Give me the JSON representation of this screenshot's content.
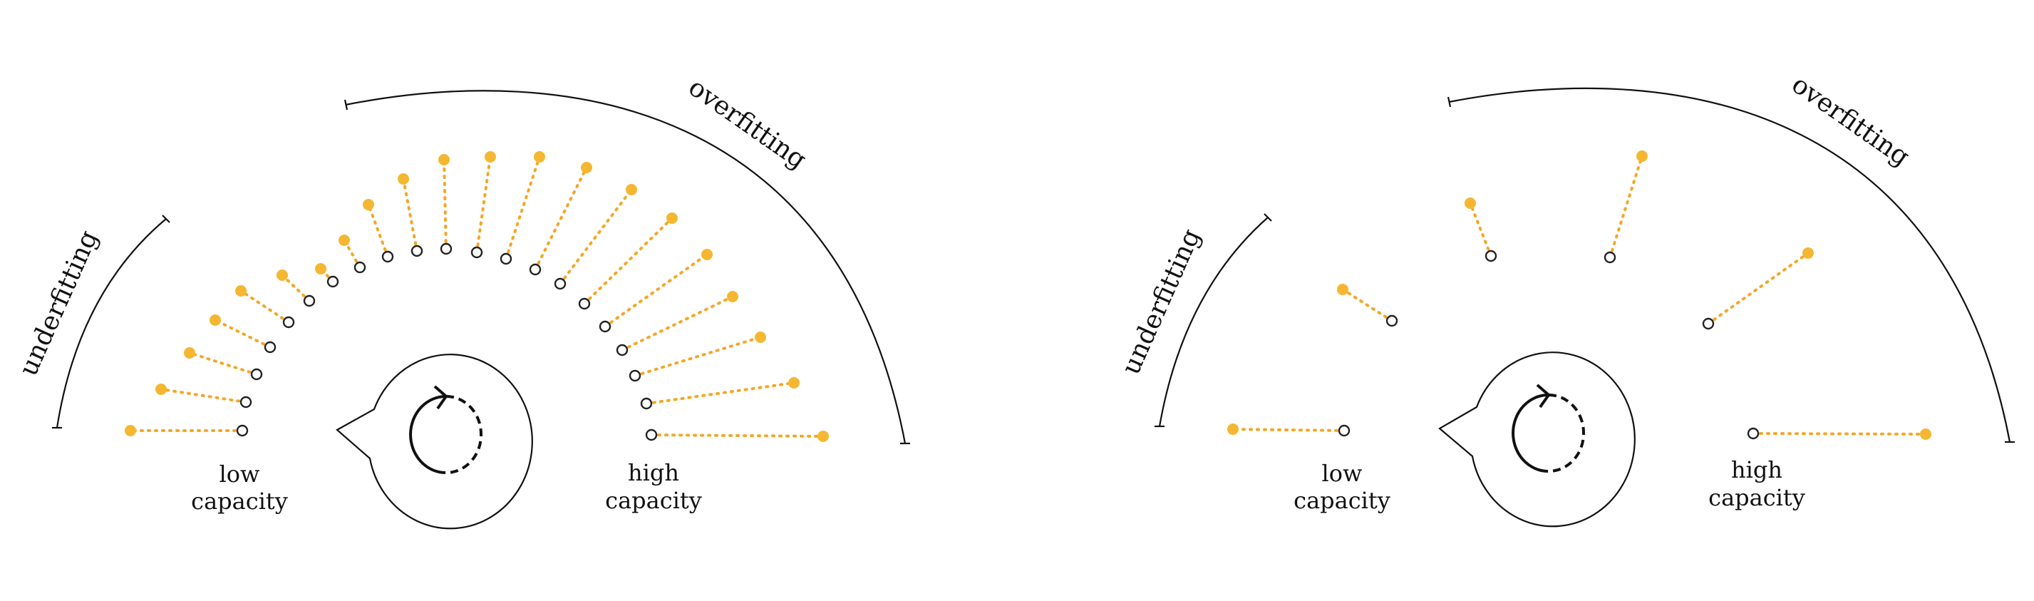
{
  "panels": [
    {
      "id": "left",
      "labels": {
        "underfitting": "underfitting",
        "overfitting": "overfitting",
        "low_capacity": [
          "low",
          "capacity"
        ],
        "high_capacity": [
          "high",
          "capacity"
        ]
      },
      "models": [
        {
          "truth": [
            340,
            604
          ],
          "pred": [
            183,
            604
          ]
        },
        {
          "truth": [
            345,
            564
          ],
          "pred": [
            226,
            546
          ]
        },
        {
          "truth": [
            360,
            525
          ],
          "pred": [
            266,
            495
          ]
        },
        {
          "truth": [
            379,
            487
          ],
          "pred": [
            302,
            449
          ]
        },
        {
          "truth": [
            405,
            452
          ],
          "pred": [
            338,
            408
          ]
        },
        {
          "truth": [
            434,
            422
          ],
          "pred": [
            396,
            386
          ]
        },
        {
          "truth": [
            467,
            395
          ],
          "pred": [
            450,
            377
          ]
        },
        {
          "truth": [
            505,
            375
          ],
          "pred": [
            483,
            337
          ]
        },
        {
          "truth": [
            544,
            360
          ],
          "pred": [
            517,
            287
          ]
        },
        {
          "truth": [
            585,
            352
          ],
          "pred": [
            566,
            251
          ]
        },
        {
          "truth": [
            626,
            349
          ],
          "pred": [
            623,
            224
          ]
        },
        {
          "truth": [
            669,
            354
          ],
          "pred": [
            688,
            220
          ]
        },
        {
          "truth": [
            710,
            363
          ],
          "pred": [
            757,
            220
          ]
        },
        {
          "truth": [
            751,
            378
          ],
          "pred": [
            823,
            235
          ]
        },
        {
          "truth": [
            786,
            398
          ],
          "pred": [
            886,
            266
          ]
        },
        {
          "truth": [
            820,
            426
          ],
          "pred": [
            943,
            306
          ]
        },
        {
          "truth": [
            849,
            458
          ],
          "pred": [
            992,
            357
          ]
        },
        {
          "truth": [
            873,
            491
          ],
          "pred": [
            1028,
            416
          ]
        },
        {
          "truth": [
            891,
            527
          ],
          "pred": [
            1067,
            473
          ]
        },
        {
          "truth": [
            907,
            566
          ],
          "pred": [
            1114,
            537
          ]
        },
        {
          "truth": [
            914,
            610
          ],
          "pred": [
            1155,
            612
          ]
        }
      ]
    },
    {
      "id": "right",
      "labels": {
        "underfitting": "underfitting",
        "overfitting": "overfitting",
        "low_capacity": [
          "low",
          "capacity"
        ],
        "high_capacity": [
          "high",
          "capacity"
        ]
      },
      "models": [
        {
          "truth": [
            1886,
            604
          ],
          "pred": [
            1730,
            602
          ]
        },
        {
          "truth": [
            1953,
            450
          ],
          "pred": [
            1884,
            406
          ]
        },
        {
          "truth": [
            2092,
            359
          ],
          "pred": [
            2063,
            285
          ]
        },
        {
          "truth": [
            2259,
            361
          ],
          "pred": [
            2304,
            219
          ]
        },
        {
          "truth": [
            2397,
            454
          ],
          "pred": [
            2537,
            355
          ]
        },
        {
          "truth": [
            2460,
            608
          ],
          "pred": [
            2702,
            609
          ]
        }
      ]
    }
  ]
}
